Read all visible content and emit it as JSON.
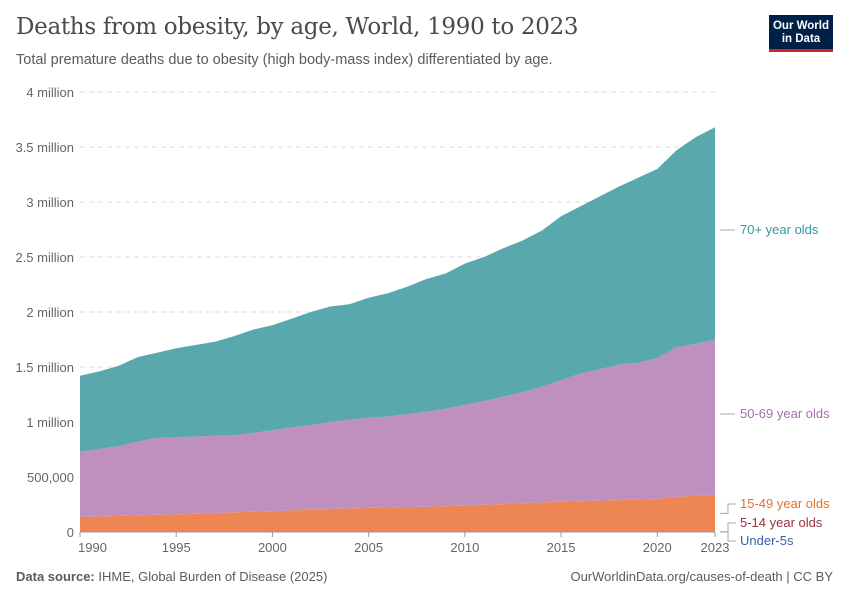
{
  "header": {
    "title": "Deaths from obesity, by age, World, 1990 to 2023",
    "subtitle": "Total premature deaths due to obesity (high body-mass index) differentiated by age."
  },
  "logo": {
    "line1": "Our World",
    "line2": "in Data",
    "bg_color": "#002147",
    "accent_color": "#ce261e"
  },
  "footer": {
    "source_label": "Data source:",
    "source_text": "IHME, Global Burden of Disease (2025)",
    "url": "OurWorldinData.org/causes-of-death | CC BY"
  },
  "chart_data": {
    "type": "area",
    "stacked": true,
    "title": "Deaths from obesity, by age, World, 1990 to 2023",
    "xlabel": "",
    "ylabel": "",
    "xlim": [
      1990,
      2023
    ],
    "ylim": [
      0,
      4000000
    ],
    "grid": "horizontal dashed",
    "legend": "right (inline labels)",
    "y_ticks": [
      {
        "value": 0,
        "label": "0"
      },
      {
        "value": 500000,
        "label": "500,000"
      },
      {
        "value": 1000000,
        "label": "1 million"
      },
      {
        "value": 1500000,
        "label": "1.5 million"
      },
      {
        "value": 2000000,
        "label": "2 million"
      },
      {
        "value": 2500000,
        "label": "2.5 million"
      },
      {
        "value": 3000000,
        "label": "3 million"
      },
      {
        "value": 3500000,
        "label": "3.5 million"
      },
      {
        "value": 4000000,
        "label": "4 million"
      }
    ],
    "x_ticks": [
      {
        "value": 1990,
        "label": "1990"
      },
      {
        "value": 1995,
        "label": "1995"
      },
      {
        "value": 2000,
        "label": "2000"
      },
      {
        "value": 2005,
        "label": "2005"
      },
      {
        "value": 2010,
        "label": "2010"
      },
      {
        "value": 2015,
        "label": "2015"
      },
      {
        "value": 2020,
        "label": "2020"
      },
      {
        "value": 2023,
        "label": "2023"
      }
    ],
    "x": [
      1990,
      1991,
      1992,
      1993,
      1994,
      1995,
      1996,
      1997,
      1998,
      1999,
      2000,
      2001,
      2002,
      2003,
      2004,
      2005,
      2006,
      2007,
      2008,
      2009,
      2010,
      2011,
      2012,
      2013,
      2014,
      2015,
      2016,
      2017,
      2018,
      2019,
      2020,
      2021,
      2022,
      2023
    ],
    "series": [
      {
        "name": "Under-5s",
        "fill": "#3b5fa8",
        "label_color": "#3b5fa8",
        "values": [
          1000,
          1000,
          1000,
          1000,
          1000,
          1000,
          1000,
          1000,
          1000,
          1000,
          1000,
          1000,
          1000,
          1000,
          1000,
          1000,
          1000,
          1000,
          1000,
          1000,
          1000,
          1000,
          1000,
          1000,
          1000,
          1000,
          1000,
          1000,
          1000,
          1000,
          1000,
          1000,
          1000,
          1000
        ]
      },
      {
        "name": "5-14 year olds",
        "fill": "#9a3040",
        "label_color": "#9a3040",
        "values": [
          3000,
          3000,
          3000,
          3000,
          3000,
          3000,
          3000,
          3000,
          3000,
          3000,
          3000,
          3000,
          3000,
          3000,
          3000,
          3000,
          3000,
          3000,
          3000,
          3000,
          3000,
          3000,
          3000,
          3000,
          3000,
          3000,
          3000,
          3000,
          3000,
          3000,
          3000,
          3000,
          3000,
          3000
        ]
      },
      {
        "name": "15-49 year olds",
        "fill": "#ee8654",
        "label_color": "#e5702f",
        "values": [
          132000,
          137000,
          142000,
          147000,
          152000,
          156000,
          162000,
          168000,
          174000,
          180000,
          186000,
          192000,
          198000,
          204000,
          210000,
          216000,
          219000,
          223000,
          226000,
          231000,
          236000,
          243000,
          250000,
          257000,
          264000,
          271000,
          276000,
          281000,
          286000,
          291000,
          296000,
          316000,
          326000,
          331000
        ]
      },
      {
        "name": "50-69 year olds",
        "fill": "#bf90be",
        "label_color": "#a96faf",
        "values": [
          594000,
          614000,
          634000,
          669000,
          699000,
          700000,
          702000,
          703000,
          702000,
          716000,
          735000,
          754000,
          768000,
          792000,
          806000,
          820000,
          827000,
          843000,
          864000,
          885000,
          915000,
          943000,
          976000,
          1009000,
          1052000,
          1105000,
          1160000,
          1195000,
          1230000,
          1245000,
          1280000,
          1360000,
          1380000,
          1415000
        ]
      },
      {
        "name": "70+ year olds",
        "fill": "#58a8ad",
        "label_color": "#2e9a9e",
        "values": [
          690000,
          705000,
          730000,
          770000,
          775000,
          810000,
          832000,
          855000,
          900000,
          940000,
          955000,
          990000,
          1030000,
          1050000,
          1050000,
          1090000,
          1120000,
          1160000,
          1206000,
          1230000,
          1285000,
          1310000,
          1350000,
          1380000,
          1420000,
          1490000,
          1520000,
          1570000,
          1620000,
          1680000,
          1720000,
          1790000,
          1880000,
          1930000
        ]
      }
    ]
  }
}
